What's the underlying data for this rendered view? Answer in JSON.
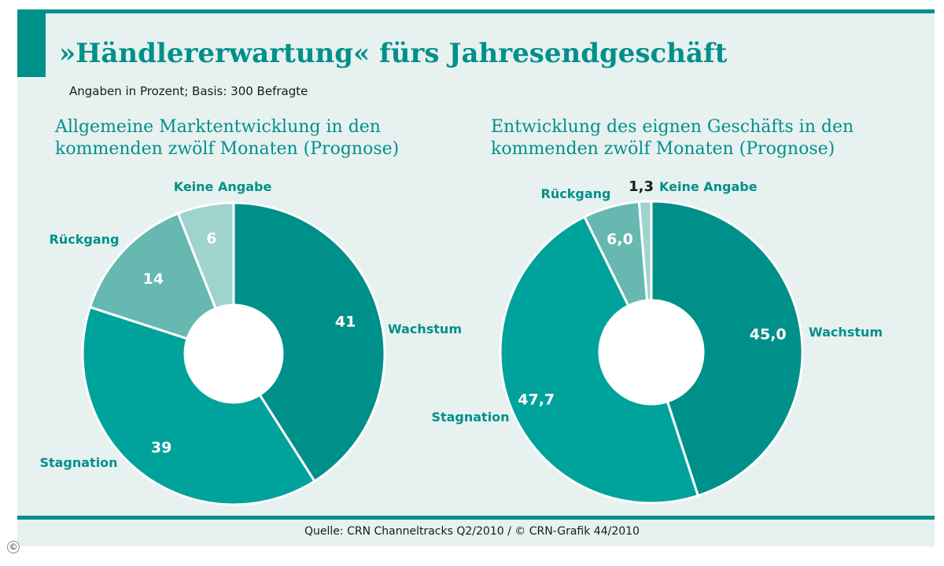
{
  "title": "»Händlererwartung« fürs Jahresendgeschäft",
  "subtitle": "Angaben in Prozent; Basis: 300 Befragte",
  "source": "Quelle: CRN Channeltracks Q2/2010 / © CRN-Grafik 44/2010",
  "copyright_mark": "©",
  "colors": {
    "accent": "#00908a",
    "background": "#e7f1f0",
    "Wachstum": "#00908a",
    "Stagnation": "#00a39c",
    "Rückgang": "#66b8b1",
    "Keine Angabe": "#9fd3cd"
  },
  "chart_data": [
    {
      "type": "pie",
      "title_lines": [
        "Allgemeine Marktentwicklung in den",
        "kommenden zwölf Monaten (Prognose)"
      ],
      "donut": true,
      "slices": [
        {
          "label": "Wachstum",
          "value": 41,
          "value_label": "41"
        },
        {
          "label": "Stagnation",
          "value": 39,
          "value_label": "39"
        },
        {
          "label": "Rückgang",
          "value": 14,
          "value_label": "14"
        },
        {
          "label": "Keine Angabe",
          "value": 6,
          "value_label": "6"
        }
      ]
    },
    {
      "type": "pie",
      "title_lines": [
        "Entwicklung des eignen Geschäfts in den",
        "kommenden zwölf Monaten (Prognose)"
      ],
      "donut": true,
      "slices": [
        {
          "label": "Wachstum",
          "value": 45.0,
          "value_label": "45,0"
        },
        {
          "label": "Stagnation",
          "value": 47.7,
          "value_label": "47,7"
        },
        {
          "label": "Rückgang",
          "value": 6.0,
          "value_label": "6,0"
        },
        {
          "label": "Keine Angabe",
          "value": 1.3,
          "value_label": "1,3"
        }
      ]
    }
  ]
}
